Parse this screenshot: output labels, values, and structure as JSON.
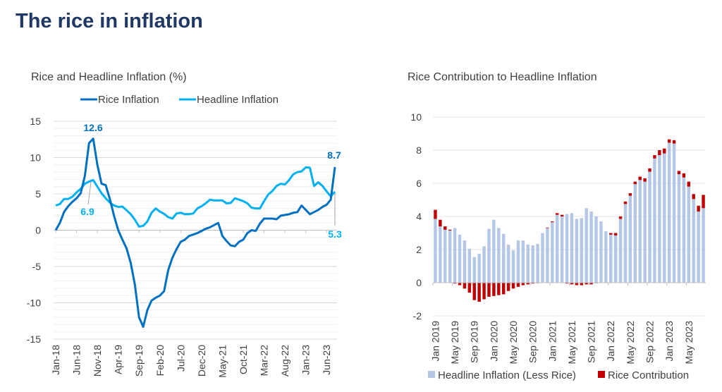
{
  "title": "The rice in inflation",
  "chart_data": [
    {
      "type": "line",
      "title": "Rice and Headline Inflation (%)",
      "ylim": [
        -15,
        15
      ],
      "yticks": [
        15,
        10,
        5,
        0,
        -5,
        -10,
        -15
      ],
      "grid": true,
      "legend_placement": "top",
      "x_tick_labels": [
        "Jan-18",
        "Jun-18",
        "Nov-18",
        "Apr-19",
        "Sep-19",
        "Feb-20",
        "Jul-20",
        "Dec-20",
        "May-21",
        "Oct-21",
        "Mar-22",
        "Aug-22",
        "Jan-23",
        "Jun-23"
      ],
      "x_start": "Jan-18",
      "x_end": "Aug-23",
      "series": [
        {
          "name": "Rice Inflation",
          "color": "#0070c0",
          "values": [
            0,
            1,
            2.5,
            3.3,
            3.9,
            4.4,
            5.1,
            7.5,
            12,
            12.6,
            9,
            6.4,
            6.2,
            4.3,
            2,
            0,
            -1.3,
            -2.5,
            -4.5,
            -7.5,
            -12,
            -13.3,
            -11,
            -9.7,
            -9.3,
            -9,
            -8.4,
            -5.5,
            -3.8,
            -2.6,
            -1.6,
            -1.3,
            -0.8,
            -0.6,
            -0.4,
            -0.1,
            0.2,
            0.4,
            0.7,
            1,
            -0.8,
            -1.5,
            -2.1,
            -2.2,
            -1.6,
            -1.3,
            -0.4,
            0,
            -0.1,
            0.9,
            1.6,
            1.6,
            1.6,
            1.5,
            2,
            2.1,
            2.2,
            2.4,
            2.5,
            3.4,
            2.8,
            2.2,
            2.5,
            2.8,
            3.2,
            3.5,
            4.2,
            8.7
          ]
        },
        {
          "name": "Headline Inflation",
          "color": "#00b0f0",
          "values": [
            3.4,
            3.6,
            4.3,
            4.3,
            4.6,
            5.2,
            5.7,
            6.4,
            6.7,
            6.9,
            6,
            5.1,
            4.4,
            3.8,
            3.4,
            3.2,
            3.25,
            2.75,
            2.2,
            1.45,
            0.5,
            0.6,
            1.2,
            2.4,
            3,
            2.55,
            2.25,
            1.8,
            1.6,
            2.3,
            2.4,
            2.2,
            2.2,
            2.3,
            3,
            3.3,
            3.7,
            4.2,
            4.1,
            4.1,
            4.1,
            3.7,
            3.75,
            4.4,
            4.2,
            4,
            3.7,
            3.1,
            3,
            3,
            4,
            4.9,
            5.4,
            6.1,
            6.4,
            6.3,
            6.9,
            7.7,
            8,
            8.1,
            8.65,
            8.6,
            6.1,
            6.6,
            6.1,
            5.35,
            4.65,
            5.3
          ]
        }
      ],
      "annotations": [
        "12.6",
        "6.9",
        "8.7",
        "5.3"
      ]
    },
    {
      "type": "bar",
      "stacked": true,
      "title": "Rice Contribution to Headline Inflation",
      "ylim": [
        -2,
        10
      ],
      "yticks": [
        10,
        8,
        6,
        4,
        2,
        0,
        -2
      ],
      "grid": true,
      "legend_placement": "bottom",
      "x_tick_labels": [
        "Jan 2019",
        "May 2019",
        "Sep 2019",
        "Jan 2020",
        "May 2020",
        "Sep 2020",
        "Jan 2021",
        "May 2021",
        "Sep 2021",
        "Jan 2022",
        "May 2022",
        "Sep 2022",
        "Jan 2023",
        "May 2023"
      ],
      "x_start": "Jan 2019",
      "x_end": "Aug 2023",
      "series": [
        {
          "name": "Headline Inflation (Less Rice)",
          "color": "#b4c7e7",
          "values": [
            3.85,
            3.4,
            3.2,
            3.15,
            3.3,
            2.9,
            2.55,
            2.05,
            1.55,
            1.75,
            2.2,
            3.25,
            3.8,
            3.3,
            2.95,
            2.3,
            1.95,
            2.55,
            2.55,
            2.3,
            2.25,
            2.35,
            3,
            3.3,
            3.65,
            4.1,
            4,
            4.15,
            4.2,
            3.85,
            3.9,
            4.5,
            4.3,
            4,
            3.7,
            3.1,
            2.9,
            2.85,
            3.85,
            4.75,
            5.25,
            5.95,
            6.2,
            6.1,
            6.7,
            7.5,
            7.7,
            7.8,
            8.45,
            8.4,
            6.55,
            6.35,
            5.8,
            5.05,
            4.3,
            4.5
          ]
        },
        {
          "name": "Rice Contribution",
          "color": "#c00000",
          "values": [
            0.55,
            0.4,
            0.2,
            0.05,
            -0.05,
            -0.15,
            -0.35,
            -0.6,
            -1.05,
            -1.15,
            -1,
            -0.85,
            -0.8,
            -0.75,
            -0.7,
            -0.5,
            -0.35,
            -0.25,
            -0.15,
            -0.1,
            -0.05,
            -0.03,
            -0.02,
            0.03,
            0.05,
            0.1,
            0.1,
            -0.05,
            -0.1,
            -0.15,
            -0.15,
            -0.1,
            -0.1,
            -0.03,
            0,
            0,
            0.1,
            0.15,
            0.15,
            0.15,
            0.15,
            0.15,
            0.2,
            0.2,
            0.2,
            0.2,
            0.3,
            0.3,
            0.2,
            0.2,
            0.2,
            0.25,
            0.3,
            0.3,
            0.35,
            0.8
          ]
        }
      ]
    }
  ]
}
